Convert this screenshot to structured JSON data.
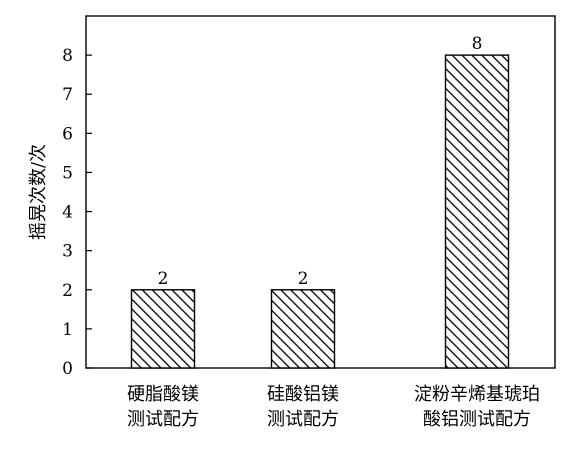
{
  "chart_data": {
    "type": "bar",
    "title": "",
    "xlabel": "",
    "ylabel": "摇晃次数/次",
    "ylim": [
      0,
      9
    ],
    "yticks": [
      0,
      1,
      2,
      3,
      4,
      5,
      6,
      7,
      8
    ],
    "grid": false,
    "bar_fill": "diagonal-hatch",
    "categories": [
      [
        "硬脂酸镁",
        "测试配方"
      ],
      [
        "硅酸铝镁",
        "测试配方"
      ],
      [
        "淀粉辛烯基琥珀",
        "酸铝测试配方"
      ]
    ],
    "values": [
      2,
      2,
      8
    ],
    "data_labels": [
      "2",
      "2",
      "8"
    ]
  },
  "colors": {
    "bar_stroke": "#000000",
    "hatch": "#000000",
    "background": "#ffffff",
    "axis": "#000000"
  }
}
